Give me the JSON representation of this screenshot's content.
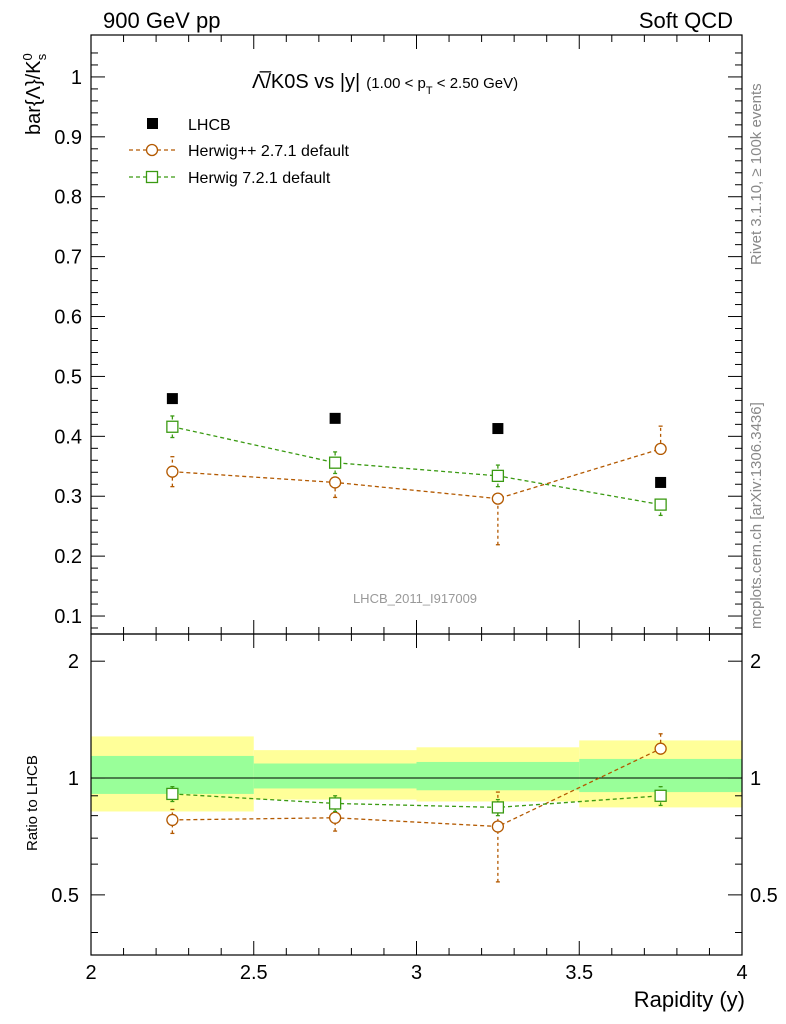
{
  "header": {
    "left": "900 GeV pp",
    "right": "Soft QCD"
  },
  "side_labels": {
    "rivet": "Rivet 3.1.10, ≥ 100k events",
    "mcplots": "mcplots.cern.ch [arXiv:1306.3436]"
  },
  "chart_data": {
    "type": "scatter",
    "title_main": "Λ̅/K0S vs |y|",
    "title_sub": "(1.00 < p",
    "title_sub_index": "T",
    "title_sub_tail": " < 2.50 GeV)",
    "ylabel_main": "bar{Λ}/K",
    "ylabel_sup": "0",
    "ylabel_sub": "s",
    "ylabel_ratio": "Ratio to LHCB",
    "xlabel": "Rapidity (y)",
    "analysis_id": "LHCB_2011_I917009",
    "xlim": [
      2,
      4
    ],
    "ylim_main": [
      0.07,
      1.07
    ],
    "ylim_ratio": [
      0.35,
      2.35
    ],
    "x_ticks": [
      "2",
      "2.5",
      "3",
      "3.5",
      "4"
    ],
    "x_tick_values": [
      2,
      2.5,
      3,
      3.5,
      4
    ],
    "y_ticks_main": [
      "0.1",
      "0.2",
      "0.3",
      "0.4",
      "0.5",
      "0.6",
      "0.7",
      "0.8",
      "0.9",
      "1"
    ],
    "y_tick_values_main": [
      0.1,
      0.2,
      0.3,
      0.4,
      0.5,
      0.6,
      0.7,
      0.8,
      0.9,
      1.0
    ],
    "y_ticks_ratio": [
      "0.5",
      "1",
      "2"
    ],
    "y_tick_values_ratio": [
      0.5,
      1,
      2
    ],
    "bins": [
      [
        2.0,
        2.5
      ],
      [
        2.5,
        3.0
      ],
      [
        3.0,
        3.5
      ],
      [
        3.5,
        4.0
      ]
    ],
    "x": [
      2.25,
      2.75,
      3.25,
      3.75
    ],
    "series": [
      {
        "name": "LHCB",
        "kind": "data",
        "color": "#000000",
        "values": [
          0.463,
          0.43,
          0.413,
          0.323
        ],
        "ratio_band_inner": [
          [
            0.91,
            1.14
          ],
          [
            0.94,
            1.09
          ],
          [
            0.93,
            1.1
          ],
          [
            0.92,
            1.12
          ]
        ],
        "ratio_band_outer": [
          [
            0.82,
            1.28
          ],
          [
            0.88,
            1.18
          ],
          [
            0.87,
            1.2
          ],
          [
            0.84,
            1.25
          ]
        ]
      },
      {
        "name": "Herwig++ 2.7.1 default",
        "kind": "mc",
        "marker": "circle",
        "color": "#b35900",
        "values": [
          0.341,
          0.323,
          0.296,
          0.379
        ],
        "err_low": [
          0.025,
          0.025,
          0.077,
          0.0
        ],
        "err_high": [
          0.025,
          0.0,
          0.0,
          0.038
        ],
        "ratio": [
          0.78,
          0.79,
          0.75,
          1.19
        ],
        "ratio_err_low": [
          0.06,
          0.06,
          0.21,
          0.0
        ],
        "ratio_err_high": [
          0.05,
          0.0,
          0.17,
          0.11
        ]
      },
      {
        "name": "Herwig 7.2.1 default",
        "kind": "mc",
        "marker": "square",
        "color": "#3a9a12",
        "values": [
          0.416,
          0.356,
          0.334,
          0.286
        ],
        "err_low": [
          0.018,
          0.018,
          0.018,
          0.018
        ],
        "err_high": [
          0.018,
          0.018,
          0.018,
          0.0
        ],
        "ratio": [
          0.91,
          0.86,
          0.84,
          0.9
        ],
        "ratio_err_low": [
          0.04,
          0.04,
          0.04,
          0.05
        ],
        "ratio_err_high": [
          0.04,
          0.04,
          0.04,
          0.05
        ]
      }
    ]
  }
}
